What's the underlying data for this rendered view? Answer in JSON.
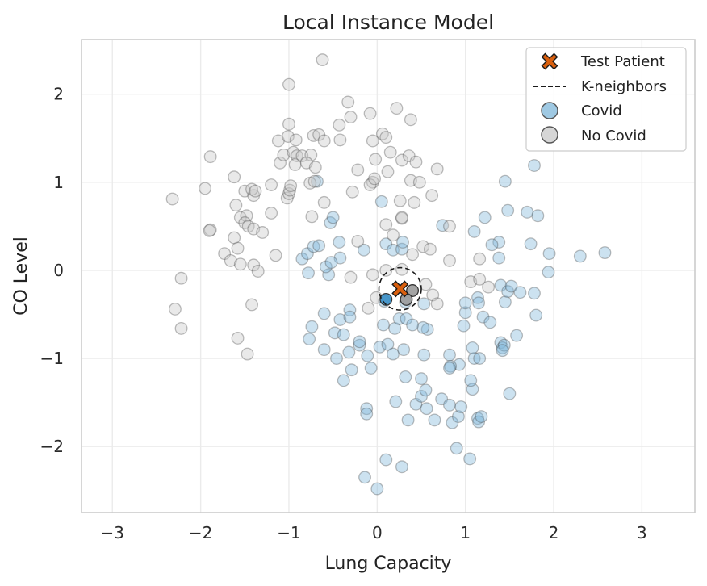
{
  "chart_data": {
    "type": "scatter",
    "title": "Local Instance Model",
    "xlabel": "Lung Capacity",
    "ylabel": "CO Level",
    "xlim": [
      -3.35,
      3.6
    ],
    "ylim": [
      -2.75,
      2.62
    ],
    "xticks": [
      -3,
      -2,
      -1,
      0,
      1,
      2,
      3
    ],
    "yticks": [
      -2,
      -1,
      0,
      1,
      2
    ],
    "xtick_labels": [
      "−3",
      "−2",
      "−1",
      "0",
      "1",
      "2",
      "3"
    ],
    "ytick_labels": [
      "−2",
      "−1",
      "0",
      "1",
      "2"
    ],
    "grid": true,
    "legend_position": "top-right",
    "legend": {
      "test_patient": "Test Patient",
      "k_neighbors": "K-neighbors",
      "covid": "Covid",
      "no_covid": "No Covid"
    },
    "colors": {
      "covid": "#7fb7d9",
      "no_covid": "#c8c8c8",
      "covid_neighbor": "#3a8fc7",
      "no_covid_neighbor": "#9a9a9a",
      "test_patient": "#d95f0e",
      "grid": "#ebebeb",
      "frame": "#cccccc"
    },
    "test_patient": {
      "x": 0.26,
      "y": -0.21
    },
    "k_neighbor_radius": 0.24,
    "k_neighbors": [
      {
        "x": 0.1,
        "y": -0.33,
        "class": "Covid"
      },
      {
        "x": 0.4,
        "y": -0.23,
        "class": "No Covid"
      },
      {
        "x": 0.33,
        "y": -0.33,
        "class": "No Covid"
      }
    ],
    "series": [
      {
        "name": "Covid",
        "points": [
          [
            -0.78,
            -0.03
          ],
          [
            -0.55,
            -0.05
          ],
          [
            -0.58,
            0.04
          ],
          [
            -0.42,
            0.14
          ],
          [
            -0.52,
            0.09
          ],
          [
            -0.85,
            0.13
          ],
          [
            -0.79,
            0.19
          ],
          [
            -0.72,
            0.27
          ],
          [
            -0.66,
            0.28
          ],
          [
            -0.43,
            0.32
          ],
          [
            -0.53,
            0.54
          ],
          [
            -0.5,
            0.6
          ],
          [
            -0.68,
            1.01
          ],
          [
            -0.15,
            0.23
          ],
          [
            0.05,
            0.78
          ],
          [
            0.1,
            0.3
          ],
          [
            0.18,
            0.23
          ],
          [
            0.28,
            0.24
          ],
          [
            0.29,
            0.32
          ],
          [
            -0.6,
            -0.49
          ],
          [
            -0.74,
            -0.64
          ],
          [
            -0.77,
            -0.78
          ],
          [
            -0.48,
            -0.71
          ],
          [
            -0.42,
            -0.56
          ],
          [
            -0.38,
            -0.73
          ],
          [
            -0.31,
            -0.45
          ],
          [
            -0.31,
            -0.53
          ],
          [
            -0.6,
            -0.9
          ],
          [
            -0.46,
            -1.0
          ],
          [
            -0.32,
            -0.93
          ],
          [
            -0.38,
            -1.25
          ],
          [
            -0.29,
            -1.13
          ],
          [
            -0.2,
            -0.85
          ],
          [
            -0.2,
            -0.81
          ],
          [
            -0.11,
            -0.97
          ],
          [
            -0.07,
            -1.11
          ],
          [
            0.07,
            -0.62
          ],
          [
            0.03,
            -0.87
          ],
          [
            0.12,
            -0.84
          ],
          [
            0.18,
            -0.95
          ],
          [
            0.2,
            -0.66
          ],
          [
            0.25,
            -0.55
          ],
          [
            0.3,
            -0.9
          ],
          [
            0.33,
            -0.55
          ],
          [
            0.32,
            -1.21
          ],
          [
            0.21,
            -1.49
          ],
          [
            0.35,
            -1.7
          ],
          [
            0.44,
            -1.52
          ],
          [
            0.5,
            -1.43
          ],
          [
            0.55,
            -1.36
          ],
          [
            0.56,
            -1.57
          ],
          [
            0.5,
            -1.23
          ],
          [
            0.53,
            -0.96
          ],
          [
            0.57,
            -0.67
          ],
          [
            0.52,
            -0.65
          ],
          [
            0.53,
            -0.38
          ],
          [
            0.32,
            -0.36
          ],
          [
            0.4,
            -0.62
          ],
          [
            0.08,
            -0.35
          ],
          [
            0.1,
            -2.15
          ],
          [
            0.28,
            -2.23
          ],
          [
            -0.14,
            -2.35
          ],
          [
            0.0,
            -2.48
          ],
          [
            -0.12,
            -1.57
          ],
          [
            -0.12,
            -1.63
          ],
          [
            0.65,
            -1.7
          ],
          [
            0.73,
            -1.46
          ],
          [
            0.82,
            -1.53
          ],
          [
            0.85,
            -1.73
          ],
          [
            0.92,
            -1.66
          ],
          [
            0.95,
            -1.55
          ],
          [
            0.9,
            -2.02
          ],
          [
            1.05,
            -2.14
          ],
          [
            1.08,
            -1.35
          ],
          [
            1.06,
            -1.25
          ],
          [
            1.14,
            -1.68
          ],
          [
            1.15,
            -1.72
          ],
          [
            1.18,
            -1.66
          ],
          [
            1.1,
            -1.0
          ],
          [
            1.08,
            -0.88
          ],
          [
            0.98,
            -0.63
          ],
          [
            1.0,
            -0.48
          ],
          [
            1.0,
            -0.37
          ],
          [
            1.14,
            -0.31
          ],
          [
            1.15,
            -0.37
          ],
          [
            1.2,
            -0.53
          ],
          [
            1.28,
            -0.59
          ],
          [
            1.16,
            -1.0
          ],
          [
            0.93,
            -1.07
          ],
          [
            0.82,
            -0.96
          ],
          [
            0.83,
            -1.09
          ],
          [
            0.82,
            -1.11
          ],
          [
            1.4,
            -0.82
          ],
          [
            1.42,
            -0.88
          ],
          [
            1.44,
            -0.85
          ],
          [
            1.42,
            -0.91
          ],
          [
            1.45,
            -0.36
          ],
          [
            1.4,
            -0.17
          ],
          [
            1.48,
            -0.24
          ],
          [
            1.52,
            -0.18
          ],
          [
            1.62,
            -0.25
          ],
          [
            1.58,
            -0.74
          ],
          [
            1.5,
            -1.4
          ],
          [
            1.78,
            -0.26
          ],
          [
            1.8,
            -0.51
          ],
          [
            1.38,
            0.14
          ],
          [
            1.38,
            0.32
          ],
          [
            1.3,
            0.29
          ],
          [
            1.1,
            0.44
          ],
          [
            1.22,
            0.6
          ],
          [
            1.48,
            0.68
          ],
          [
            1.45,
            1.01
          ],
          [
            1.7,
            0.66
          ],
          [
            1.74,
            0.3
          ],
          [
            1.82,
            0.62
          ],
          [
            1.78,
            1.19
          ],
          [
            1.95,
            0.19
          ],
          [
            1.94,
            -0.02
          ],
          [
            2.3,
            0.16
          ],
          [
            2.58,
            0.2
          ],
          [
            0.74,
            0.51
          ]
        ]
      },
      {
        "name": "No Covid",
        "points": [
          [
            -0.62,
            2.39
          ],
          [
            -1.0,
            2.11
          ],
          [
            -1.0,
            1.66
          ],
          [
            -0.33,
            1.91
          ],
          [
            -0.3,
            1.74
          ],
          [
            -0.43,
            1.65
          ],
          [
            -0.08,
            1.78
          ],
          [
            0.06,
            1.55
          ],
          [
            0.1,
            1.51
          ],
          [
            0.22,
            1.84
          ],
          [
            0.38,
            1.71
          ],
          [
            0.15,
            1.34
          ],
          [
            0.28,
            1.25
          ],
          [
            0.36,
            1.3
          ],
          [
            0.44,
            1.23
          ],
          [
            -1.12,
            1.47
          ],
          [
            -1.01,
            1.52
          ],
          [
            -0.92,
            1.48
          ],
          [
            -0.72,
            1.53
          ],
          [
            -0.66,
            1.54
          ],
          [
            -0.6,
            1.47
          ],
          [
            -0.42,
            1.48
          ],
          [
            -0.05,
            1.47
          ],
          [
            -1.1,
            1.22
          ],
          [
            -1.06,
            1.31
          ],
          [
            -0.95,
            1.34
          ],
          [
            -0.91,
            1.3
          ],
          [
            -0.93,
            1.2
          ],
          [
            -0.85,
            1.3
          ],
          [
            -0.75,
            1.31
          ],
          [
            -0.8,
            1.22
          ],
          [
            -0.7,
            1.17
          ],
          [
            -0.02,
            1.26
          ],
          [
            0.12,
            1.12
          ],
          [
            -0.22,
            1.14
          ],
          [
            -0.05,
            1.0
          ],
          [
            -0.08,
            0.97
          ],
          [
            -0.03,
            1.04
          ],
          [
            0.38,
            1.02
          ],
          [
            0.48,
            1.0
          ],
          [
            0.42,
            0.77
          ],
          [
            0.62,
            0.85
          ],
          [
            0.68,
            1.15
          ],
          [
            0.26,
            0.79
          ],
          [
            0.28,
            0.59
          ],
          [
            -0.28,
            0.89
          ],
          [
            -1.02,
            0.82
          ],
          [
            -1.0,
            0.87
          ],
          [
            -0.99,
            0.91
          ],
          [
            -0.98,
            0.96
          ],
          [
            -1.2,
            0.97
          ],
          [
            -1.89,
            1.29
          ],
          [
            -1.95,
            0.93
          ],
          [
            -2.32,
            0.81
          ],
          [
            -1.62,
            1.06
          ],
          [
            -1.5,
            0.9
          ],
          [
            -1.4,
            0.85
          ],
          [
            -1.42,
            0.92
          ],
          [
            -1.38,
            0.9
          ],
          [
            -0.76,
            0.99
          ],
          [
            -0.71,
            1.01
          ],
          [
            -0.6,
            0.77
          ],
          [
            -1.6,
            0.74
          ],
          [
            -1.55,
            0.6
          ],
          [
            -1.48,
            0.62
          ],
          [
            -1.5,
            0.54
          ],
          [
            -1.46,
            0.5
          ],
          [
            -1.4,
            0.47
          ],
          [
            -1.3,
            0.43
          ],
          [
            -1.2,
            0.65
          ],
          [
            -1.89,
            0.46
          ],
          [
            -1.9,
            0.45
          ],
          [
            -1.62,
            0.37
          ],
          [
            -1.58,
            0.25
          ],
          [
            -1.73,
            0.19
          ],
          [
            -1.66,
            0.11
          ],
          [
            -1.55,
            0.07
          ],
          [
            -1.4,
            0.06
          ],
          [
            -1.15,
            0.17
          ],
          [
            -1.35,
            -0.01
          ],
          [
            -2.22,
            -0.09
          ],
          [
            -2.29,
            -0.44
          ],
          [
            -2.22,
            -0.66
          ],
          [
            -1.58,
            -0.77
          ],
          [
            -1.47,
            -0.95
          ],
          [
            -1.42,
            -0.39
          ],
          [
            -0.74,
            0.61
          ],
          [
            -0.22,
            0.33
          ],
          [
            0.1,
            0.52
          ],
          [
            0.18,
            0.4
          ],
          [
            0.28,
            0.6
          ],
          [
            0.52,
            0.27
          ],
          [
            0.6,
            0.24
          ],
          [
            0.82,
            0.5
          ],
          [
            0.82,
            0.11
          ],
          [
            1.16,
            0.13
          ],
          [
            0.4,
            0.18
          ],
          [
            0.1,
            0.0
          ],
          [
            0.28,
            0.01
          ],
          [
            -0.05,
            -0.05
          ],
          [
            0.55,
            -0.16
          ],
          [
            0.63,
            -0.28
          ],
          [
            0.68,
            -0.38
          ],
          [
            1.06,
            -0.13
          ],
          [
            1.16,
            -0.1
          ],
          [
            1.26,
            -0.19
          ],
          [
            -0.3,
            -0.08
          ],
          [
            -0.1,
            -0.43
          ],
          [
            -0.01,
            -0.31
          ]
        ]
      }
    ]
  }
}
